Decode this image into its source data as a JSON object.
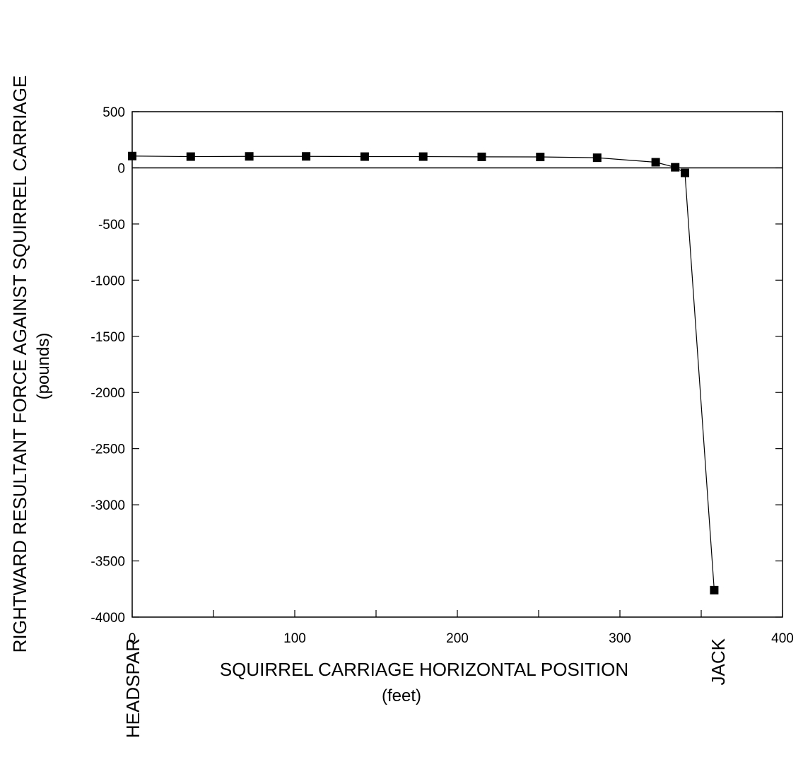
{
  "chart_data": {
    "type": "line",
    "xlabel": "SQUIRREL CARRIAGE HORIZONTAL POSITION",
    "xlabel_unit": "(feet)",
    "ylabel": "RIGHTWARD RESULTANT FORCE AGAINST SQUIRREL CARRIAGE",
    "ylabel_unit": "(pounds)",
    "xlim": [
      0,
      400
    ],
    "ylim": [
      -4000,
      500
    ],
    "x_ticks": [
      0,
      100,
      200,
      300,
      400
    ],
    "y_ticks": [
      500,
      0,
      -500,
      -1000,
      -1500,
      -2000,
      -2500,
      -3000,
      -3500,
      -4000
    ],
    "x_tick_labels": [
      "0",
      "100",
      "200",
      "300",
      "400"
    ],
    "y_tick_labels": [
      "500",
      "0",
      "-500",
      "-1000",
      "-1500",
      "-2000",
      "-2500",
      "-3000",
      "-3500",
      "-4000"
    ],
    "annotations": [
      {
        "text": "HEADSPAR",
        "x": 0
      },
      {
        "text": "JACK",
        "x": 360
      }
    ],
    "grid": false,
    "series": [
      {
        "marker": "square",
        "color": "#000000",
        "points": [
          {
            "x": 0,
            "y": 105
          },
          {
            "x": 36,
            "y": 100
          },
          {
            "x": 72,
            "y": 102
          },
          {
            "x": 107,
            "y": 102
          },
          {
            "x": 143,
            "y": 100
          },
          {
            "x": 179,
            "y": 100
          },
          {
            "x": 215,
            "y": 98
          },
          {
            "x": 251,
            "y": 97
          },
          {
            "x": 286,
            "y": 90
          },
          {
            "x": 322,
            "y": 50
          },
          {
            "x": 334,
            "y": 5
          },
          {
            "x": 340,
            "y": -45
          },
          {
            "x": 358,
            "y": -3760
          }
        ]
      }
    ]
  }
}
